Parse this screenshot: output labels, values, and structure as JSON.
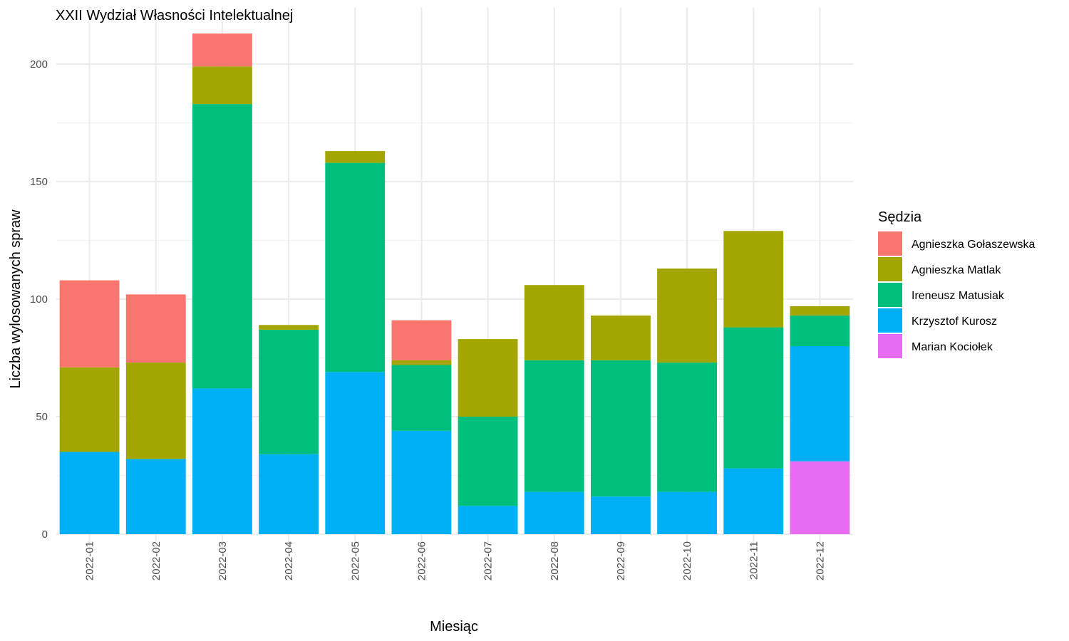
{
  "chart_data": {
    "type": "bar",
    "stacked": true,
    "title": "XXII Wydział Własności Intelektualnej",
    "xlabel": "Miesiąc",
    "ylabel": "Liczba wylosowanych spraw",
    "ylim": [
      0,
      225
    ],
    "yticks": [
      "0",
      "50",
      "100",
      "150",
      "200"
    ],
    "grid": true,
    "legend": {
      "title": "Sędzia",
      "position": "right"
    },
    "categories": [
      "2022-01",
      "2022-02",
      "2022-03",
      "2022-04",
      "2022-05",
      "2022-06",
      "2022-07",
      "2022-08",
      "2022-09",
      "2022-10",
      "2022-11",
      "2022-12"
    ],
    "series": [
      {
        "name": "Agnieszka Gołaszewska",
        "color": "#F8766D",
        "values": [
          37,
          29,
          14,
          0,
          0,
          17,
          0,
          0,
          0,
          0,
          0,
          0
        ]
      },
      {
        "name": "Agnieszka Matlak",
        "color": "#A3A500",
        "values": [
          36,
          41,
          16,
          2,
          5,
          2,
          33,
          32,
          19,
          40,
          41,
          4
        ]
      },
      {
        "name": "Ireneusz Matusiak",
        "color": "#00BF7D",
        "values": [
          0,
          0,
          121,
          53,
          89,
          28,
          38,
          56,
          58,
          55,
          60,
          13
        ]
      },
      {
        "name": "Krzysztof Kurosz",
        "color": "#00B0F6",
        "values": [
          35,
          32,
          62,
          34,
          69,
          44,
          12,
          18,
          16,
          18,
          28,
          49
        ]
      },
      {
        "name": "Marian Kociołek",
        "color": "#E76BF3",
        "values": [
          0,
          0,
          0,
          0,
          0,
          0,
          0,
          0,
          0,
          0,
          0,
          31
        ]
      }
    ]
  }
}
